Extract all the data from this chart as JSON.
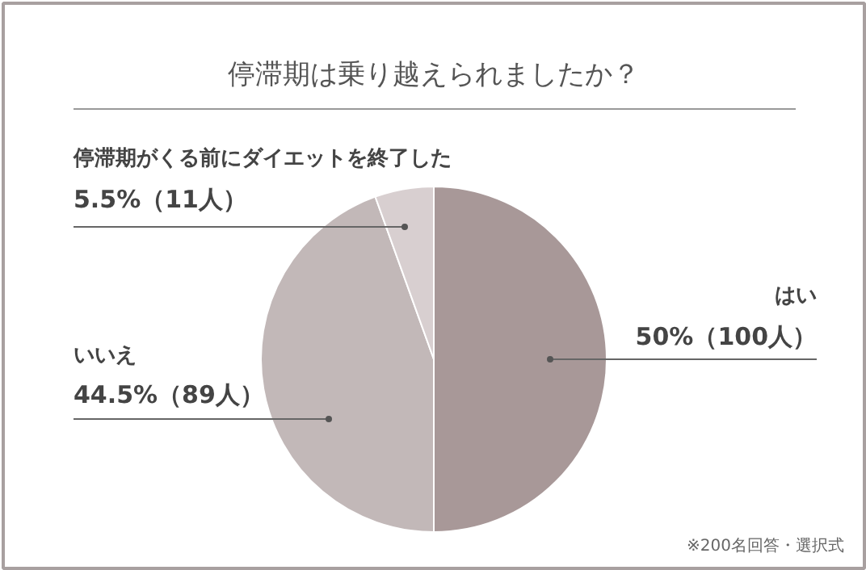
{
  "chart_data": {
    "type": "pie",
    "title": "停滞期は乗り越えられましたか？",
    "categories": [
      "はい",
      "いいえ",
      "停滞期がくる前にダイエットを終了した"
    ],
    "values": [
      50,
      44.5,
      5.5
    ],
    "value_labels": [
      "50%（100人）",
      "44.5%（89人）",
      "5.5%（11人）"
    ],
    "colors": [
      "#a89898",
      "#c2b8b8",
      "#d8cfd0"
    ],
    "annotations": [
      "※200名回答・選択式"
    ]
  }
}
